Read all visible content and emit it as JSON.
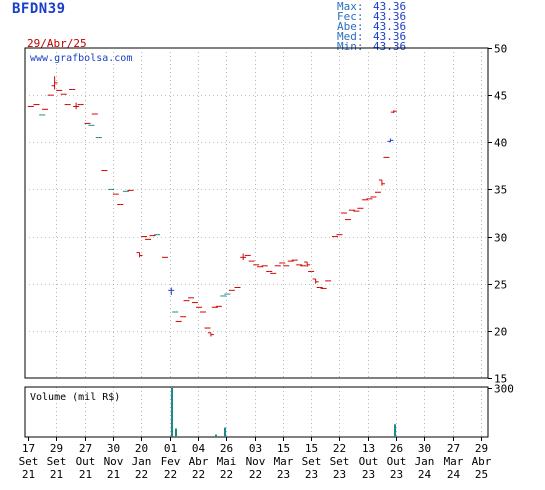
{
  "header": {
    "ticker": "BFDN39",
    "date": "29/Abr/25",
    "stats": [
      {
        "label": "Max:",
        "value": "43.36"
      },
      {
        "label": "Fec:",
        "value": "43.36"
      },
      {
        "label": "Abe:",
        "value": "43.36"
      },
      {
        "label": "Med:",
        "value": "43.36"
      },
      {
        "label": "Min:",
        "value": "43.36"
      }
    ]
  },
  "colors": {
    "up": "#1a3fc8",
    "down": "#d40000",
    "neutral": "#1a8a8a",
    "frame": "#000000",
    "grid": "#888888"
  },
  "chart_data": [
    {
      "type": "line",
      "watermark": "www.grafbolsa.com",
      "ylim": [
        15,
        50
      ],
      "yticks": [
        15,
        20,
        25,
        30,
        35,
        40,
        45,
        50
      ],
      "grid": true,
      "x_index_max": 80,
      "xtick_labels": [
        {
          "i": 0,
          "day": "17",
          "month": "Set",
          "year": "21"
        },
        {
          "i": 5,
          "day": "29",
          "month": "Set",
          "year": "21"
        },
        {
          "i": 10,
          "day": "27",
          "month": "Out",
          "year": "21"
        },
        {
          "i": 15,
          "day": "30",
          "month": "Nov",
          "year": "21"
        },
        {
          "i": 20,
          "day": "20",
          "month": "Jan",
          "year": "22"
        },
        {
          "i": 25,
          "day": "01",
          "month": "Fev",
          "year": "22"
        },
        {
          "i": 30,
          "day": "04",
          "month": "Abr",
          "year": "22"
        },
        {
          "i": 35,
          "day": "26",
          "month": "Mai",
          "year": "22"
        },
        {
          "i": 40,
          "day": "03",
          "month": "Nov",
          "year": "22"
        },
        {
          "i": 45,
          "day": "15",
          "month": "Mar",
          "year": "23"
        },
        {
          "i": 50,
          "day": "15",
          "month": "Set",
          "year": "23"
        },
        {
          "i": 55,
          "day": "22",
          "month": "Set",
          "year": "23"
        },
        {
          "i": 60,
          "day": "13",
          "month": "Out",
          "year": "23"
        },
        {
          "i": 65,
          "day": "26",
          "month": "Out",
          "year": "23"
        },
        {
          "i": 70,
          "day": "30",
          "month": "Jan",
          "year": "24"
        },
        {
          "i": 75,
          "day": "27",
          "month": "Mar",
          "year": "24"
        },
        {
          "i": 80,
          "day": "29",
          "month": "Abr",
          "year": "25"
        }
      ],
      "points": [
        {
          "i": 0.5,
          "o": 43.8,
          "h": 43.8,
          "l": 43.8,
          "c": 43.8,
          "d": "down"
        },
        {
          "i": 1.5,
          "o": 44.0,
          "h": 44.0,
          "l": 44.0,
          "c": 44.0,
          "d": "down"
        },
        {
          "i": 2.5,
          "o": 42.9,
          "h": 42.9,
          "l": 42.9,
          "c": 42.9,
          "d": "neutral"
        },
        {
          "i": 3,
          "o": 43.5,
          "h": 43.5,
          "l": 43.5,
          "c": 43.5,
          "d": "down"
        },
        {
          "i": 4,
          "o": 45.0,
          "h": 45.0,
          "l": 45.0,
          "c": 45.0,
          "d": "down"
        },
        {
          "i": 4.7,
          "o": 46.0,
          "h": 47.0,
          "l": 45.6,
          "c": 46.3,
          "d": "down"
        },
        {
          "i": 5.5,
          "o": 45.5,
          "h": 45.5,
          "l": 45.5,
          "c": 45.5,
          "d": "down"
        },
        {
          "i": 6.3,
          "o": 45.1,
          "h": 45.1,
          "l": 45.1,
          "c": 45.1,
          "d": "down"
        },
        {
          "i": 7,
          "o": 44.0,
          "h": 44.0,
          "l": 44.0,
          "c": 44.0,
          "d": "down"
        },
        {
          "i": 7.8,
          "o": 45.6,
          "h": 45.6,
          "l": 45.6,
          "c": 45.6,
          "d": "down"
        },
        {
          "i": 8.5,
          "o": 43.8,
          "h": 44.2,
          "l": 43.5,
          "c": 43.8,
          "d": "down"
        },
        {
          "i": 9.3,
          "o": 44.0,
          "h": 44.0,
          "l": 44.0,
          "c": 44.0,
          "d": "down"
        },
        {
          "i": 10.5,
          "o": 42.0,
          "h": 42.0,
          "l": 42.0,
          "c": 42.0,
          "d": "down"
        },
        {
          "i": 11.2,
          "o": 41.8,
          "h": 41.8,
          "l": 41.8,
          "c": 41.8,
          "d": "neutral"
        },
        {
          "i": 11.8,
          "o": 43.0,
          "h": 43.0,
          "l": 43.0,
          "c": 43.0,
          "d": "down"
        },
        {
          "i": 12.5,
          "o": 40.5,
          "h": 40.5,
          "l": 40.5,
          "c": 40.5,
          "d": "neutral"
        },
        {
          "i": 13.5,
          "o": 37.0,
          "h": 37.0,
          "l": 37.0,
          "c": 37.0,
          "d": "down"
        },
        {
          "i": 14.7,
          "o": 35.0,
          "h": 35.0,
          "l": 35.0,
          "c": 35.0,
          "d": "neutral"
        },
        {
          "i": 15.5,
          "o": 34.5,
          "h": 34.5,
          "l": 34.5,
          "c": 34.5,
          "d": "down"
        },
        {
          "i": 16.3,
          "o": 33.4,
          "h": 33.4,
          "l": 33.4,
          "c": 33.4,
          "d": "down"
        },
        {
          "i": 17.3,
          "o": 34.8,
          "h": 34.8,
          "l": 34.8,
          "c": 34.8,
          "d": "neutral"
        },
        {
          "i": 18.1,
          "o": 34.9,
          "h": 34.9,
          "l": 34.9,
          "c": 34.9,
          "d": "down"
        },
        {
          "i": 19.7,
          "o": 28.3,
          "h": 28.3,
          "l": 27.8,
          "c": 28.0,
          "d": "down"
        },
        {
          "i": 20.5,
          "o": 30.0,
          "h": 30.0,
          "l": 30.0,
          "c": 30.0,
          "d": "down"
        },
        {
          "i": 21.2,
          "o": 29.7,
          "h": 29.7,
          "l": 29.7,
          "c": 29.7,
          "d": "down"
        },
        {
          "i": 22.0,
          "o": 30.1,
          "h": 30.1,
          "l": 30.1,
          "c": 30.1,
          "d": "down"
        },
        {
          "i": 22.8,
          "o": 30.2,
          "h": 30.2,
          "l": 30.2,
          "c": 30.2,
          "d": "neutral"
        },
        {
          "i": 24.2,
          "o": 27.8,
          "h": 27.8,
          "l": 27.8,
          "c": 27.8,
          "d": "down"
        },
        {
          "i": 25.3,
          "o": 24.3,
          "h": 24.6,
          "l": 23.8,
          "c": 24.3,
          "d": "up"
        },
        {
          "i": 26.0,
          "o": 22.0,
          "h": 22.0,
          "l": 22.0,
          "c": 22.0,
          "d": "neutral"
        },
        {
          "i": 26.6,
          "o": 21.0,
          "h": 21.0,
          "l": 21.0,
          "c": 21.0,
          "d": "down"
        },
        {
          "i": 27.4,
          "o": 21.5,
          "h": 21.5,
          "l": 21.5,
          "c": 21.5,
          "d": "down"
        },
        {
          "i": 28.0,
          "o": 23.2,
          "h": 23.2,
          "l": 23.2,
          "c": 23.2,
          "d": "down"
        },
        {
          "i": 28.8,
          "o": 23.5,
          "h": 23.5,
          "l": 23.5,
          "c": 23.5,
          "d": "down"
        },
        {
          "i": 29.5,
          "o": 23.0,
          "h": 23.0,
          "l": 23.0,
          "c": 23.0,
          "d": "down"
        },
        {
          "i": 30.2,
          "o": 22.5,
          "h": 22.5,
          "l": 22.5,
          "c": 22.5,
          "d": "down"
        },
        {
          "i": 30.9,
          "o": 22.0,
          "h": 22.0,
          "l": 22.0,
          "c": 22.0,
          "d": "down"
        },
        {
          "i": 31.7,
          "o": 20.3,
          "h": 20.3,
          "l": 20.3,
          "c": 20.3,
          "d": "down"
        },
        {
          "i": 32.3,
          "o": 19.8,
          "h": 19.8,
          "l": 19.4,
          "c": 19.6,
          "d": "down"
        },
        {
          "i": 33.0,
          "o": 22.5,
          "h": 22.5,
          "l": 22.5,
          "c": 22.5,
          "d": "down"
        },
        {
          "i": 33.7,
          "o": 22.6,
          "h": 22.6,
          "l": 22.6,
          "c": 22.6,
          "d": "down"
        },
        {
          "i": 34.5,
          "o": 23.7,
          "h": 23.7,
          "l": 23.7,
          "c": 23.7,
          "d": "neutral"
        },
        {
          "i": 35.2,
          "o": 23.9,
          "h": 23.9,
          "l": 23.9,
          "c": 23.9,
          "d": "neutral"
        },
        {
          "i": 36.0,
          "o": 24.3,
          "h": 24.3,
          "l": 24.3,
          "c": 24.3,
          "d": "down"
        },
        {
          "i": 37.0,
          "o": 24.6,
          "h": 24.6,
          "l": 24.6,
          "c": 24.6,
          "d": "down"
        },
        {
          "i": 38.0,
          "o": 27.8,
          "h": 28.2,
          "l": 27.5,
          "c": 27.8,
          "d": "down"
        },
        {
          "i": 38.8,
          "o": 28.0,
          "h": 28.0,
          "l": 28.0,
          "c": 28.0,
          "d": "down"
        },
        {
          "i": 39.5,
          "o": 27.4,
          "h": 27.4,
          "l": 27.4,
          "c": 27.4,
          "d": "down"
        },
        {
          "i": 40.3,
          "o": 27.0,
          "h": 27.0,
          "l": 27.0,
          "c": 27.0,
          "d": "down"
        },
        {
          "i": 41.0,
          "o": 26.8,
          "h": 26.8,
          "l": 26.8,
          "c": 26.8,
          "d": "down"
        },
        {
          "i": 41.8,
          "o": 26.9,
          "h": 26.9,
          "l": 26.9,
          "c": 26.9,
          "d": "down"
        },
        {
          "i": 42.6,
          "o": 26.3,
          "h": 26.3,
          "l": 26.3,
          "c": 26.3,
          "d": "down"
        },
        {
          "i": 43.3,
          "o": 26.1,
          "h": 26.1,
          "l": 26.1,
          "c": 26.1,
          "d": "down"
        },
        {
          "i": 44.1,
          "o": 26.9,
          "h": 26.9,
          "l": 26.9,
          "c": 26.9,
          "d": "down"
        },
        {
          "i": 44.9,
          "o": 27.2,
          "h": 27.2,
          "l": 27.2,
          "c": 27.2,
          "d": "down"
        },
        {
          "i": 45.6,
          "o": 26.9,
          "h": 26.9,
          "l": 26.9,
          "c": 26.9,
          "d": "down"
        },
        {
          "i": 46.4,
          "o": 27.4,
          "h": 27.4,
          "l": 27.4,
          "c": 27.4,
          "d": "down"
        },
        {
          "i": 47.1,
          "o": 27.5,
          "h": 27.5,
          "l": 27.5,
          "c": 27.5,
          "d": "down"
        },
        {
          "i": 47.9,
          "o": 27.0,
          "h": 27.0,
          "l": 27.0,
          "c": 27.0,
          "d": "down"
        },
        {
          "i": 48.6,
          "o": 26.9,
          "h": 26.9,
          "l": 26.9,
          "c": 26.9,
          "d": "down"
        },
        {
          "i": 49.3,
          "o": 27.3,
          "h": 27.3,
          "l": 26.8,
          "c": 27.0,
          "d": "down"
        },
        {
          "i": 50.0,
          "o": 26.3,
          "h": 26.3,
          "l": 26.3,
          "c": 26.3,
          "d": "down"
        },
        {
          "i": 50.8,
          "o": 25.5,
          "h": 25.5,
          "l": 25.0,
          "c": 25.2,
          "d": "down"
        },
        {
          "i": 51.5,
          "o": 24.6,
          "h": 24.6,
          "l": 24.6,
          "c": 24.6,
          "d": "down"
        },
        {
          "i": 52.2,
          "o": 24.5,
          "h": 24.5,
          "l": 24.5,
          "c": 24.5,
          "d": "down"
        },
        {
          "i": 53.0,
          "o": 25.3,
          "h": 25.3,
          "l": 25.3,
          "c": 25.3,
          "d": "down"
        },
        {
          "i": 54.2,
          "o": 30.0,
          "h": 30.0,
          "l": 30.0,
          "c": 30.0,
          "d": "down"
        },
        {
          "i": 55.0,
          "o": 30.2,
          "h": 30.2,
          "l": 30.2,
          "c": 30.2,
          "d": "down"
        },
        {
          "i": 55.8,
          "o": 32.5,
          "h": 32.5,
          "l": 32.5,
          "c": 32.5,
          "d": "down"
        },
        {
          "i": 56.5,
          "o": 31.8,
          "h": 31.8,
          "l": 31.8,
          "c": 31.8,
          "d": "down"
        },
        {
          "i": 57.2,
          "o": 32.8,
          "h": 32.8,
          "l": 32.8,
          "c": 32.8,
          "d": "down"
        },
        {
          "i": 58.0,
          "o": 32.7,
          "h": 32.7,
          "l": 32.7,
          "c": 32.7,
          "d": "down"
        },
        {
          "i": 58.7,
          "o": 33.0,
          "h": 33.0,
          "l": 33.0,
          "c": 33.0,
          "d": "down"
        },
        {
          "i": 59.5,
          "o": 33.9,
          "h": 33.9,
          "l": 33.9,
          "c": 33.9,
          "d": "down"
        },
        {
          "i": 60.3,
          "o": 34.0,
          "h": 34.0,
          "l": 34.0,
          "c": 34.0,
          "d": "down"
        },
        {
          "i": 61.0,
          "o": 34.2,
          "h": 34.2,
          "l": 34.2,
          "c": 34.2,
          "d": "down"
        },
        {
          "i": 61.8,
          "o": 34.7,
          "h": 34.7,
          "l": 34.7,
          "c": 34.7,
          "d": "down"
        },
        {
          "i": 62.5,
          "o": 36.0,
          "h": 36.0,
          "l": 35.4,
          "c": 35.6,
          "d": "down"
        },
        {
          "i": 63.3,
          "o": 38.4,
          "h": 38.4,
          "l": 38.4,
          "c": 38.4,
          "d": "down"
        },
        {
          "i": 64.0,
          "o": 40.1,
          "h": 40.4,
          "l": 40.0,
          "c": 40.2,
          "d": "up"
        },
        {
          "i": 64.6,
          "o": 43.2,
          "h": 43.4,
          "l": 43.1,
          "c": 43.3,
          "d": "down"
        }
      ]
    },
    {
      "type": "bar",
      "title": "Volume (mil R$)",
      "ylim": [
        0,
        300
      ],
      "yticks": [
        300
      ],
      "bars": [
        {
          "i": 25.3,
          "value": 300
        },
        {
          "i": 25.9,
          "value": 52
        },
        {
          "i": 33.0,
          "value": 15
        },
        {
          "i": 34.6,
          "value": 58
        },
        {
          "i": 64.6,
          "value": 78
        }
      ]
    }
  ]
}
